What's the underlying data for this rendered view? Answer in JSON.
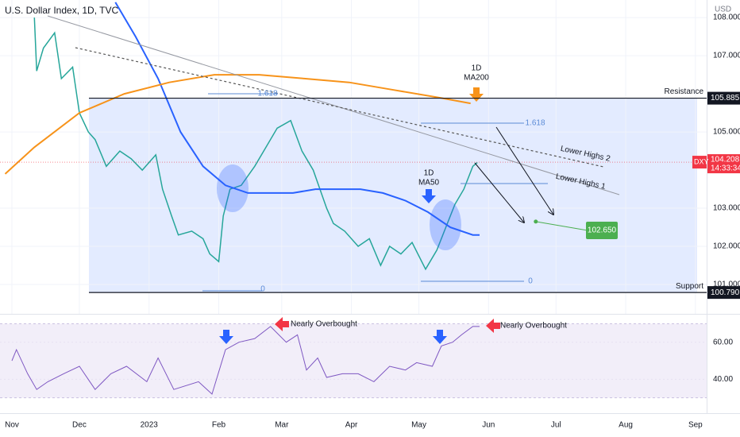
{
  "header": {
    "title": "U.S. Dollar Index, 1D, TVC",
    "currency": "USD"
  },
  "chart_data": [
    {
      "type": "line",
      "xlim": [
        -5.3,
        309
      ],
      "ylim": [
        100.23,
        108.46
      ],
      "xticks": [
        {
          "value": 0,
          "label": "Nov"
        },
        {
          "value": 30,
          "label": "Dec"
        },
        {
          "value": 61,
          "label": "2023"
        },
        {
          "value": 92,
          "label": "Feb"
        },
        {
          "value": 120,
          "label": "Mar"
        },
        {
          "value": 151,
          "label": "Apr"
        },
        {
          "value": 181,
          "label": "May"
        },
        {
          "value": 212,
          "label": "Jun"
        },
        {
          "value": 242,
          "label": "Jul"
        },
        {
          "value": 273,
          "label": "Aug"
        },
        {
          "value": 304,
          "label": "Sep"
        }
      ],
      "yticks": [
        {
          "value": 101,
          "label": "101.000"
        },
        {
          "value": 102,
          "label": "102.000"
        },
        {
          "value": 103,
          "label": "103.000"
        },
        {
          "value": 105,
          "label": "105.000"
        },
        {
          "value": 107,
          "label": "107.000"
        },
        {
          "value": 108,
          "label": "108.000"
        }
      ],
      "series": [
        {
          "name": "DXY",
          "color": "#26a69a",
          "x": [
            10,
            11,
            14,
            19,
            22,
            27,
            30,
            34,
            37,
            42,
            48,
            53,
            58,
            64,
            67,
            71,
            74,
            80,
            85,
            88,
            92,
            94,
            97,
            102,
            108,
            113,
            118,
            124,
            129,
            134,
            140,
            143,
            148,
            154,
            159,
            164,
            168,
            173,
            178,
            184,
            189,
            193,
            197,
            201,
            205,
            207
          ],
          "values": [
            108.0,
            106.6,
            107.2,
            107.6,
            106.4,
            106.7,
            105.5,
            105.0,
            104.8,
            104.1,
            104.5,
            104.3,
            104.0,
            104.4,
            103.5,
            102.8,
            102.3,
            102.4,
            102.2,
            101.8,
            101.6,
            102.8,
            103.5,
            103.6,
            104.1,
            104.6,
            105.1,
            105.3,
            104.5,
            104.0,
            103.0,
            102.6,
            102.4,
            102.0,
            102.2,
            101.5,
            102.0,
            101.8,
            102.1,
            101.4,
            101.9,
            102.5,
            103.1,
            103.5,
            104.1,
            104.2
          ]
        },
        {
          "name": "MA50",
          "color": "#2962ff",
          "x": [
            46,
            55,
            65,
            75,
            85,
            95,
            105,
            115,
            125,
            135,
            145,
            155,
            165,
            175,
            185,
            195,
            205,
            208
          ],
          "values": [
            108.4,
            107.5,
            106.4,
            105.0,
            104.1,
            103.6,
            103.4,
            103.4,
            103.4,
            103.5,
            103.5,
            103.5,
            103.4,
            103.2,
            102.9,
            102.5,
            102.3,
            102.3
          ]
        },
        {
          "name": "MA200",
          "color": "#f7931a",
          "x": [
            -3,
            10,
            30,
            50,
            70,
            90,
            110,
            130,
            150,
            170,
            190,
            204
          ],
          "values": [
            103.9,
            104.6,
            105.5,
            106.0,
            106.3,
            106.5,
            106.5,
            106.4,
            106.3,
            106.1,
            105.9,
            105.75
          ]
        }
      ],
      "last_price": {
        "value": 104.208,
        "countdown": "14:33:34"
      },
      "levels": [
        {
          "name": "Resistance",
          "value": 105.885
        },
        {
          "name": "Support",
          "value": 100.79,
          "label": "100.790"
        }
      ],
      "target": {
        "x": 233,
        "value": 102.65,
        "label": "102.650"
      },
      "annotations": [
        "1D",
        "1D",
        "1.618",
        "0",
        "1.618",
        "0",
        "Lower Highs 2",
        "Lower Highs 1"
      ]
    },
    {
      "type": "line",
      "xlim": [
        -5.3,
        309
      ],
      "ylim": [
        21.7,
        74.9
      ],
      "yticks": [
        {
          "value": 40,
          "label": "40.00"
        },
        {
          "value": 60,
          "label": "60.00"
        }
      ],
      "band": [
        30,
        70
      ],
      "color": "#7e57c2",
      "x": [
        0,
        2,
        7,
        11,
        16,
        23,
        30,
        37,
        44,
        51,
        60,
        65,
        72,
        83,
        89,
        95,
        101,
        108,
        115,
        122,
        127,
        131,
        136,
        140,
        147,
        154,
        161,
        168,
        175,
        180,
        187,
        191,
        196,
        200,
        205,
        208
      ],
      "values": [
        50,
        56,
        43,
        34.5,
        38.7,
        43,
        47,
        34.5,
        43,
        47,
        38.7,
        51.5,
        34.5,
        38.7,
        32,
        56,
        60,
        62,
        68.5,
        60,
        64,
        45,
        51.5,
        41,
        43,
        43,
        38.7,
        47,
        45,
        49,
        47,
        58,
        60,
        64,
        68.5,
        68.5
      ],
      "annotations": [
        "Nearly Overbought",
        "Nearly Overbought"
      ]
    }
  ]
}
